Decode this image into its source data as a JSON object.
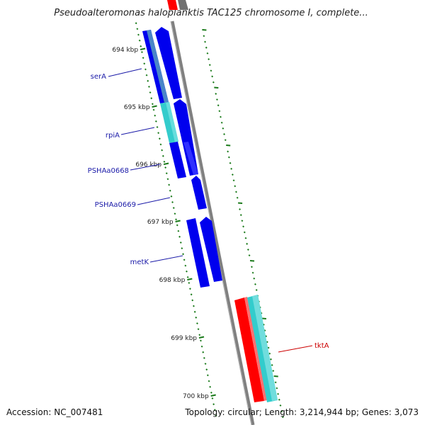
{
  "title": "Pseudoalteromonas haloplanktis TAC125 chromosome I, complete...",
  "accession": "Accession: NC_007481",
  "topology": "Topology: circular; Length: 3,214,944 bp; Genes: 3,073",
  "colors": {
    "backbone": "#808080",
    "tick": "#1a7a1a",
    "gene_blue": "#0000ee",
    "gene_cyan": "#33cccc",
    "gene_red": "#ff0000",
    "gene_steel": "#4a86c8",
    "label_blue": "#1a1aa8",
    "label_red": "#cc0000"
  },
  "scale": {
    "unit": "kbp",
    "ticks": [
      "694 kbp",
      "695 kbp",
      "696 kbp",
      "697 kbp",
      "698 kbp",
      "699 kbp",
      "700 kbp"
    ]
  },
  "genes": [
    {
      "name": "serA",
      "color": "label_blue"
    },
    {
      "name": "rpiA",
      "color": "label_blue"
    },
    {
      "name": "PSHAa0668",
      "color": "label_blue"
    },
    {
      "name": "PSHAa0669",
      "color": "label_blue"
    },
    {
      "name": "metK",
      "color": "label_blue"
    },
    {
      "name": "tktA",
      "color": "label_red"
    }
  ]
}
